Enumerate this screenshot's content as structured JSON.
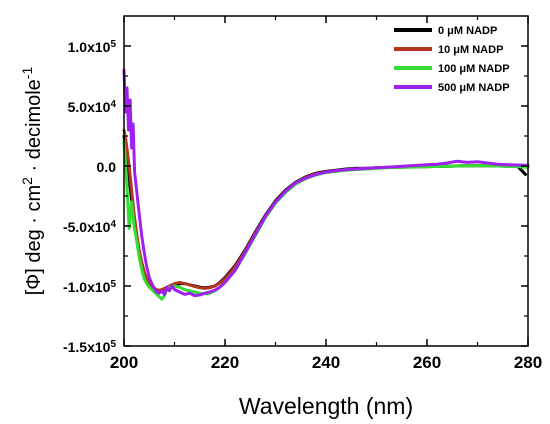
{
  "chart_data": {
    "type": "line",
    "xlabel": "Wavelength (nm)",
    "ylabel": "[Φ] deg · cm2 · decimole-1",
    "ylabel_parts": {
      "prefix": "[Φ]  deg  ·  cm",
      "sup1": "2",
      "middle": "  ·  decimole",
      "sup2": "-1"
    },
    "xlim": [
      200,
      280
    ],
    "ylim": [
      -150000,
      125000
    ],
    "x_ticks": [
      200,
      220,
      240,
      260,
      280
    ],
    "x_tick_labels": [
      "200",
      "220",
      "240",
      "260",
      "280"
    ],
    "y_ticks": [
      {
        "value": 100000,
        "mantissa": "1.0x10",
        "exp": "5"
      },
      {
        "value": 50000,
        "mantissa": "5.0x10",
        "exp": "4"
      },
      {
        "value": 0,
        "mantissa": "0.0",
        "exp": ""
      },
      {
        "value": -50000,
        "mantissa": "-5.0x10",
        "exp": "4"
      },
      {
        "value": -100000,
        "mantissa": "-1.0x10",
        "exp": "5"
      },
      {
        "value": -150000,
        "mantissa": "-1.5x10",
        "exp": "5"
      }
    ],
    "grid": false,
    "legend_position": "top-right",
    "series": [
      {
        "name": "0 μM NADP",
        "color": "#000000",
        "x": [
          200,
          200.5,
          201,
          201.5,
          202,
          202.5,
          203,
          203.5,
          204,
          204.5,
          205,
          205.5,
          206,
          206.5,
          207,
          207.5,
          208,
          209,
          210,
          211,
          212,
          213,
          214,
          215,
          216,
          217,
          218,
          219,
          220,
          222,
          224,
          226,
          228,
          230,
          232,
          234,
          236,
          238,
          240,
          242,
          244,
          246,
          248,
          250,
          252,
          254,
          256,
          258,
          260,
          262,
          264,
          266,
          268,
          270,
          272,
          274,
          276,
          278,
          279.5
        ],
        "y": [
          25000,
          8000,
          -10000,
          -28000,
          -45000,
          -60000,
          -72000,
          -82000,
          -90000,
          -95000,
          -99000,
          -101000,
          -103000,
          -104000,
          -104500,
          -104000,
          -103000,
          -101000,
          -99000,
          -98000,
          -98000,
          -99000,
          -100000,
          -101000,
          -101500,
          -101000,
          -100000,
          -97000,
          -93000,
          -83000,
          -70000,
          -55000,
          -41000,
          -29000,
          -20000,
          -13500,
          -9000,
          -6000,
          -4500,
          -3500,
          -2500,
          -2000,
          -1800,
          -1500,
          -1200,
          -1000,
          -800,
          -600,
          -500,
          -300,
          -200,
          0,
          200,
          300,
          200,
          0,
          -200,
          -500,
          -7000
        ]
      },
      {
        "name": "10 μM NADP",
        "color": "#b4381f",
        "x": [
          200,
          200.5,
          201,
          201.5,
          202,
          202.5,
          203,
          203.5,
          204,
          204.5,
          205,
          205.5,
          206,
          206.5,
          207,
          207.5,
          208,
          209,
          210,
          211,
          212,
          213,
          214,
          215,
          216,
          217,
          218,
          219,
          220,
          222,
          224,
          226,
          228,
          230,
          232,
          234,
          236,
          238,
          240,
          242,
          244,
          246,
          248,
          250,
          252,
          254,
          256,
          258,
          260,
          262,
          264,
          266,
          268,
          270,
          272,
          274,
          276,
          278,
          280
        ],
        "y": [
          30000,
          18000,
          0,
          -20000,
          -40000,
          -56000,
          -70000,
          -80000,
          -88000,
          -94000,
          -98000,
          -101000,
          -102000,
          -103000,
          -103500,
          -103000,
          -102000,
          -100000,
          -98000,
          -97000,
          -98000,
          -99000,
          -100500,
          -101500,
          -102000,
          -101500,
          -100000,
          -97500,
          -94000,
          -84000,
          -71000,
          -56000,
          -42000,
          -30000,
          -21000,
          -14000,
          -9500,
          -6500,
          -5000,
          -4000,
          -3000,
          -2500,
          -2000,
          -1500,
          -1200,
          -1000,
          -800,
          -700,
          -500,
          -300,
          -100,
          100,
          300,
          400,
          300,
          100,
          -100,
          -300,
          -1000
        ]
      },
      {
        "name": "100 μM NADP",
        "color": "#33dd33",
        "x": [
          200,
          200.5,
          201,
          201.5,
          202,
          202.5,
          203,
          203.5,
          204,
          204.5,
          205,
          205.5,
          206,
          206.5,
          207,
          207.5,
          208,
          208.5,
          209,
          210,
          211,
          212,
          213,
          214,
          215,
          216,
          217,
          218,
          219,
          220,
          222,
          224,
          226,
          228,
          230,
          232,
          234,
          236,
          238,
          240,
          242,
          244,
          246,
          248,
          250,
          252,
          254,
          256,
          258,
          260,
          262,
          264,
          266,
          268,
          270,
          272,
          274,
          276,
          278,
          280
        ],
        "y": [
          20000,
          -10000,
          -52000,
          -30000,
          -50000,
          -62000,
          -76000,
          -86000,
          -94000,
          -98000,
          -101000,
          -103000,
          -105000,
          -107000,
          -109000,
          -111000,
          -108000,
          -103000,
          -101000,
          -100000,
          -101000,
          -103000,
          -104000,
          -105000,
          -106000,
          -106500,
          -106000,
          -104000,
          -101000,
          -97000,
          -87000,
          -73000,
          -58000,
          -43000,
          -31000,
          -22000,
          -15000,
          -10500,
          -7500,
          -5500,
          -4500,
          -3500,
          -3000,
          -2500,
          -2000,
          -1500,
          -1200,
          -1000,
          -800,
          -600,
          -400,
          -200,
          0,
          200,
          300,
          200,
          0,
          -300,
          -500,
          -1000
        ]
      },
      {
        "name": "500 μM NADP",
        "color": "#a020f0",
        "x": [
          200,
          200.3,
          200.6,
          200.9,
          201.2,
          201.5,
          201.8,
          202.1,
          202.5,
          203,
          203.5,
          204,
          204.5,
          205,
          205.5,
          206,
          206.5,
          207,
          207.5,
          208,
          208.5,
          209,
          209.5,
          210,
          211,
          212,
          213,
          214,
          215,
          216,
          217,
          218,
          219,
          220,
          222,
          224,
          226,
          228,
          230,
          232,
          234,
          236,
          238,
          240,
          242,
          244,
          246,
          248,
          250,
          252,
          254,
          256,
          258,
          260,
          262,
          264,
          266,
          268,
          270,
          272,
          274,
          276,
          278,
          280
        ],
        "y": [
          80000,
          45000,
          65000,
          30000,
          55000,
          15000,
          35000,
          -5000,
          -20000,
          -40000,
          -58000,
          -72000,
          -84000,
          -93000,
          -98000,
          -102000,
          -105000,
          -106000,
          -104000,
          -107000,
          -101000,
          -104000,
          -100000,
          -103000,
          -105000,
          -107000,
          -106000,
          -108000,
          -107500,
          -106000,
          -105000,
          -103500,
          -101000,
          -97000,
          -87000,
          -72000,
          -57000,
          -42000,
          -30000,
          -21000,
          -14000,
          -10000,
          -7000,
          -5000,
          -4000,
          -3000,
          -2500,
          -2000,
          -1500,
          -1000,
          -500,
          0,
          500,
          1000,
          1500,
          2500,
          4000,
          3000,
          3500,
          2500,
          1500,
          1000,
          800,
          500
        ]
      }
    ]
  }
}
